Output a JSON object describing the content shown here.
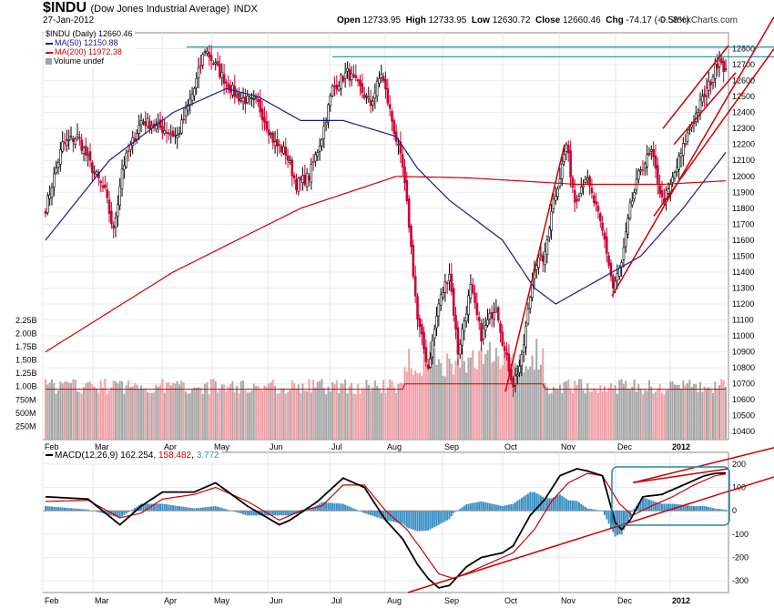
{
  "header": {
    "symbol": "$INDU",
    "name": "(Dow Jones Industrial Average)",
    "exchange": "INDX",
    "date": "27-Jan-2012",
    "open_label": "Open",
    "open": "12733.95",
    "high_label": "High",
    "high": "12733.95",
    "low_label": "Low",
    "low": "12630.72",
    "close_label": "Close",
    "close": "12660.46",
    "chg_label": "Chg",
    "chg": "-74.17 (-0.58%)",
    "brand": "© StockCharts.com"
  },
  "legend": {
    "main": "$INDU (Daily) 12660.46",
    "ma50": "MA(50) 12150.88",
    "ma200": "MA(200) 11972.38",
    "volume": "Volume undef"
  },
  "macd_legend": {
    "label": "MACD(12,26,9)",
    "macd": "162.254",
    "signal": "158.482",
    "hist": "3.772"
  },
  "colors": {
    "up": "#000000",
    "down": "#cc0033",
    "ma50": "#1a1a8c",
    "ma200": "#cc0000",
    "trend": "#cc0000",
    "level": "#1d8aa8",
    "vol_up": "#a8a8a8",
    "vol_down": "#f0a0a8",
    "hist": "#3a8fc4",
    "signal": "#cc0000",
    "macd": "#000000"
  },
  "chart_data": [
    {
      "type": "candlestick",
      "title": "$INDU (Dow Jones Industrial Average) Daily",
      "ylim": [
        10350,
        12900
      ],
      "yticks": [
        10400,
        10500,
        10600,
        10700,
        10800,
        10900,
        11000,
        11100,
        11200,
        11300,
        11400,
        11500,
        11600,
        11700,
        11800,
        11900,
        12000,
        12100,
        12200,
        12300,
        12400,
        12500,
        12600,
        12700,
        12800
      ],
      "months": [
        "Feb",
        "Mar",
        "Apr",
        "May",
        "Jun",
        "Jul",
        "Aug",
        "Sep",
        "Oct",
        "Nov",
        "Dec",
        "2012"
      ],
      "anchors": [
        [
          0,
          11800
        ],
        [
          8,
          12200
        ],
        [
          15,
          12250
        ],
        [
          22,
          12050
        ],
        [
          28,
          11900
        ],
        [
          32,
          11650
        ],
        [
          36,
          12050
        ],
        [
          45,
          12350
        ],
        [
          55,
          12300
        ],
        [
          62,
          12250
        ],
        [
          70,
          12550
        ],
        [
          75,
          12800
        ],
        [
          82,
          12650
        ],
        [
          90,
          12500
        ],
        [
          100,
          12450
        ],
        [
          108,
          12200
        ],
        [
          113,
          12150
        ],
        [
          118,
          11950
        ],
        [
          124,
          12000
        ],
        [
          130,
          12250
        ],
        [
          135,
          12550
        ],
        [
          142,
          12650
        ],
        [
          148,
          12550
        ],
        [
          153,
          12450
        ],
        [
          158,
          12650
        ],
        [
          163,
          12350
        ],
        [
          168,
          12050
        ],
        [
          171,
          11700
        ],
        [
          175,
          11100
        ],
        [
          180,
          10800
        ],
        [
          185,
          11200
        ],
        [
          190,
          11400
        ],
        [
          194,
          10900
        ],
        [
          200,
          11300
        ],
        [
          205,
          11000
        ],
        [
          212,
          11200
        ],
        [
          216,
          10900
        ],
        [
          220,
          10700
        ],
        [
          224,
          10850
        ],
        [
          230,
          11450
        ],
        [
          235,
          11500
        ],
        [
          238,
          11800
        ],
        [
          242,
          12000
        ],
        [
          245,
          12200
        ],
        [
          249,
          11850
        ],
        [
          254,
          12000
        ],
        [
          259,
          11800
        ],
        [
          263,
          11600
        ],
        [
          267,
          11300
        ],
        [
          271,
          11450
        ],
        [
          275,
          11800
        ],
        [
          280,
          12050
        ],
        [
          285,
          12150
        ],
        [
          290,
          11850
        ],
        [
          293,
          11900
        ],
        [
          298,
          12100
        ],
        [
          303,
          12300
        ],
        [
          308,
          12450
        ],
        [
          313,
          12600
        ],
        [
          317,
          12750
        ],
        [
          320,
          12660
        ]
      ],
      "ma50_label": "MA(50) 12150.88",
      "ma200_label": "MA(200) 11972.38",
      "ma50_anchors": [
        [
          0,
          11600
        ],
        [
          30,
          12100
        ],
        [
          60,
          12400
        ],
        [
          85,
          12550
        ],
        [
          100,
          12500
        ],
        [
          120,
          12350
        ],
        [
          140,
          12350
        ],
        [
          165,
          12250
        ],
        [
          175,
          12050
        ],
        [
          190,
          11850
        ],
        [
          215,
          11600
        ],
        [
          230,
          11300
        ],
        [
          240,
          11200
        ],
        [
          260,
          11350
        ],
        [
          280,
          11500
        ],
        [
          300,
          11800
        ],
        [
          320,
          12150
        ]
      ],
      "ma200_anchors": [
        [
          0,
          10900
        ],
        [
          60,
          11400
        ],
        [
          120,
          11800
        ],
        [
          165,
          12000
        ],
        [
          200,
          11990
        ],
        [
          250,
          11950
        ],
        [
          290,
          11950
        ],
        [
          320,
          11972
        ]
      ],
      "resistance_levels": [
        12810,
        12750
      ],
      "volume_ticks": [
        "2.25B",
        "2.00B",
        "1.75B",
        "1.50B",
        "1.25B",
        "1.00B",
        "750M",
        "500M",
        "250M"
      ],
      "volume_range": [
        0,
        2400
      ]
    },
    {
      "type": "macd",
      "title": "MACD(12,26,9)",
      "ylim": [
        -350,
        250
      ],
      "yticks": [
        -300,
        -200,
        -100,
        0,
        100,
        200
      ],
      "macd_value": 162.254,
      "signal_value": 158.482,
      "hist_value": 3.772,
      "macd_anchors": [
        [
          0,
          60
        ],
        [
          20,
          50
        ],
        [
          35,
          -60
        ],
        [
          45,
          20
        ],
        [
          55,
          80
        ],
        [
          70,
          80
        ],
        [
          80,
          120
        ],
        [
          95,
          20
        ],
        [
          110,
          -60
        ],
        [
          115,
          -40
        ],
        [
          128,
          40
        ],
        [
          140,
          140
        ],
        [
          150,
          100
        ],
        [
          160,
          -40
        ],
        [
          168,
          -120
        ],
        [
          175,
          -230
        ],
        [
          180,
          -290
        ],
        [
          185,
          -330
        ],
        [
          190,
          -320
        ],
        [
          198,
          -240
        ],
        [
          205,
          -200
        ],
        [
          215,
          -180
        ],
        [
          220,
          -150
        ],
        [
          228,
          -20
        ],
        [
          235,
          50
        ],
        [
          242,
          150
        ],
        [
          250,
          180
        ],
        [
          255,
          170
        ],
        [
          262,
          150
        ],
        [
          268,
          -50
        ],
        [
          271,
          -80
        ],
        [
          275,
          -40
        ],
        [
          281,
          60
        ],
        [
          290,
          70
        ],
        [
          300,
          110
        ],
        [
          310,
          150
        ],
        [
          315,
          160
        ],
        [
          320,
          162
        ]
      ],
      "signal_anchors": [
        [
          0,
          40
        ],
        [
          20,
          45
        ],
        [
          35,
          -30
        ],
        [
          45,
          -10
        ],
        [
          55,
          50
        ],
        [
          70,
          70
        ],
        [
          80,
          100
        ],
        [
          95,
          40
        ],
        [
          110,
          -40
        ],
        [
          120,
          0
        ],
        [
          130,
          20
        ],
        [
          140,
          110
        ],
        [
          150,
          110
        ],
        [
          160,
          0
        ],
        [
          170,
          -80
        ],
        [
          178,
          -180
        ],
        [
          185,
          -270
        ],
        [
          192,
          -290
        ],
        [
          200,
          -260
        ],
        [
          210,
          -220
        ],
        [
          220,
          -180
        ],
        [
          230,
          -80
        ],
        [
          238,
          40
        ],
        [
          246,
          120
        ],
        [
          255,
          160
        ],
        [
          262,
          150
        ],
        [
          270,
          30
        ],
        [
          276,
          -20
        ],
        [
          285,
          20
        ],
        [
          295,
          60
        ],
        [
          305,
          110
        ],
        [
          315,
          150
        ],
        [
          320,
          158
        ]
      ]
    }
  ]
}
